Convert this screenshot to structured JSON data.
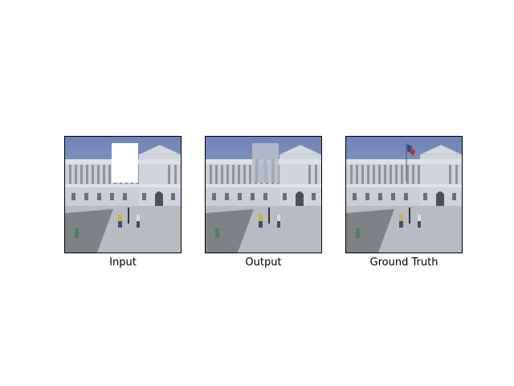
{
  "figure": {
    "panels": [
      {
        "id": "input",
        "caption": "Input",
        "variant": "masked"
      },
      {
        "id": "output",
        "caption": "Output",
        "variant": "blurred"
      },
      {
        "id": "ground_truth",
        "caption": "Ground Truth",
        "variant": "original"
      }
    ]
  },
  "colors": {
    "sky_top": "#6f84b6",
    "sky_bottom": "#aebbd6",
    "facade": "#c9cfd8",
    "facade_shadow": "#8d959f",
    "plaza": "#b8bcc0",
    "plaza_shadow": "#6c6f72",
    "mask": "#ffffff",
    "flag_blue": "#2b4a9a",
    "flag_red": "#c03030"
  }
}
